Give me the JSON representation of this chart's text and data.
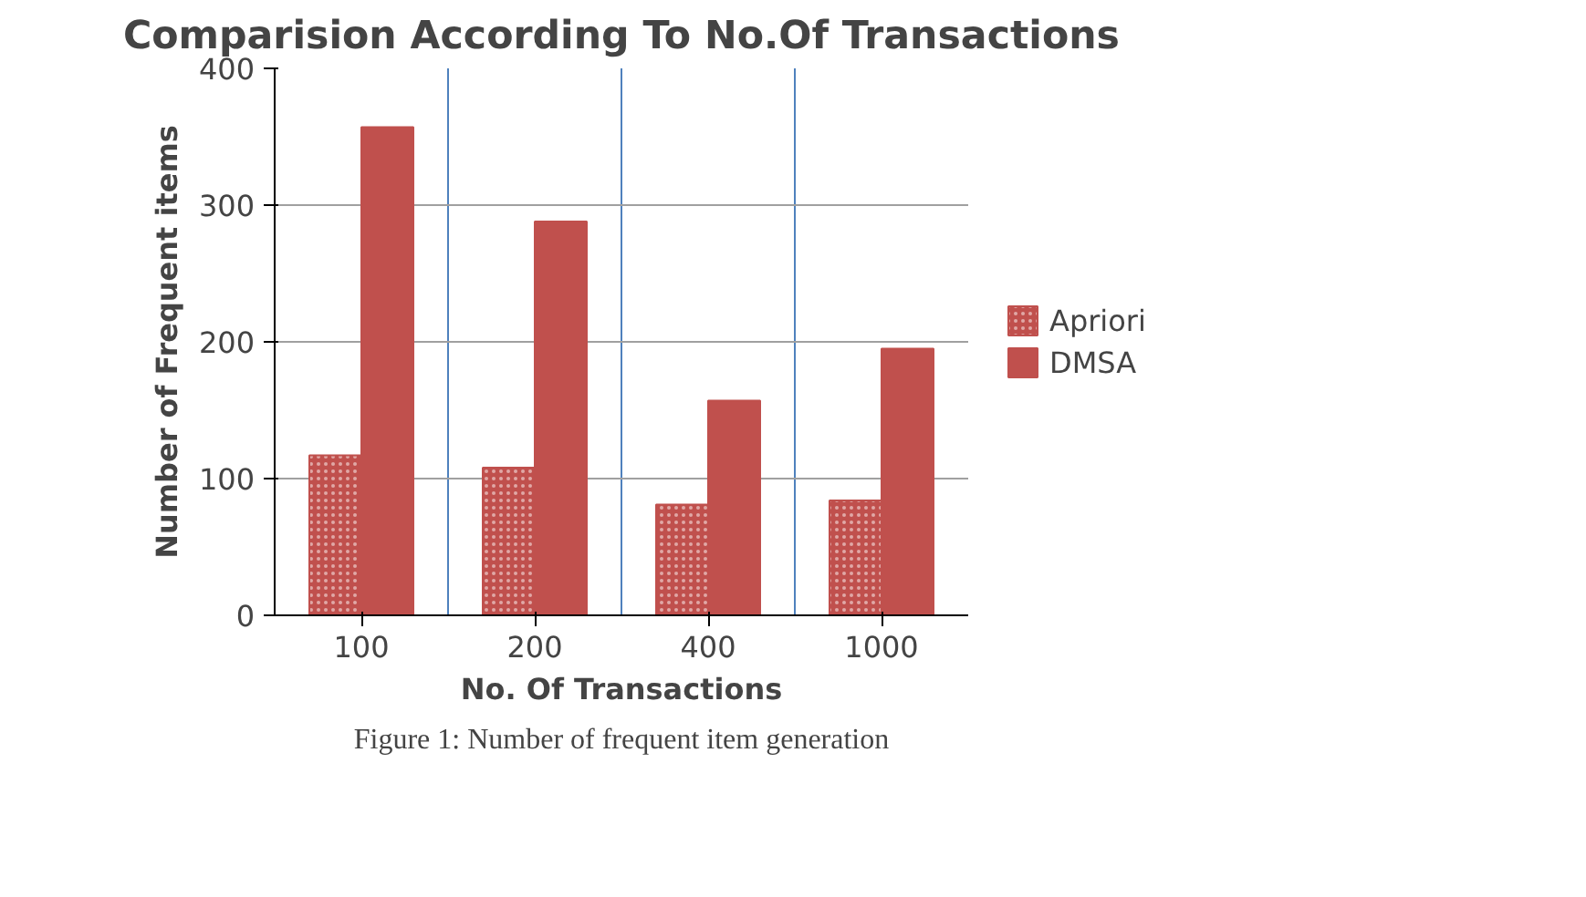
{
  "chart_data": {
    "type": "bar",
    "title": "Comparision According To No.Of Transactions",
    "xlabel": "No. Of Transactions",
    "ylabel": "Number of Frequent items",
    "categories": [
      "100",
      "200",
      "400",
      "1000"
    ],
    "series": [
      {
        "name": "Apriori",
        "color": "#c0504d",
        "values": [
          117,
          108,
          81,
          84
        ]
      },
      {
        "name": "DMSA",
        "color": "#c0504d",
        "values": [
          357,
          288,
          157,
          195
        ]
      }
    ],
    "ylim": [
      0,
      400
    ],
    "yticks": [
      0,
      100,
      200,
      300,
      400
    ],
    "grid": true,
    "legend": "right",
    "annotations": [
      "Figure 1: Number of frequent item generation"
    ]
  }
}
